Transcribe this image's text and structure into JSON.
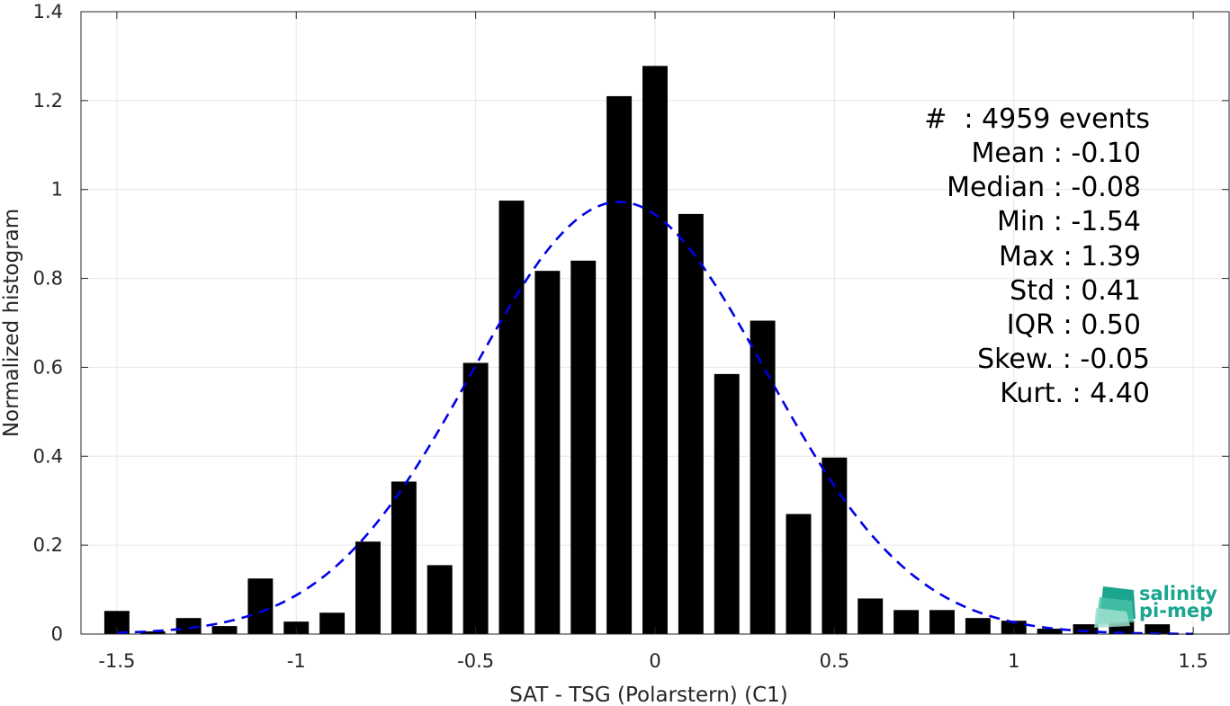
{
  "chart_data": {
    "type": "bar",
    "xlabel": "SAT - TSG (Polarstern) (C1)",
    "ylabel": "Normalized histogram",
    "xlim": [
      -1.6,
      1.6
    ],
    "ylim": [
      0,
      1.4
    ],
    "xticks": [
      -1.5,
      -1,
      -0.5,
      0,
      0.5,
      1,
      1.5
    ],
    "xtick_labels": [
      "-1.5",
      "-1",
      "-0.5",
      "0",
      "0.5",
      "1",
      "1.5"
    ],
    "yticks": [
      0,
      0.2,
      0.4,
      0.6,
      0.8,
      1,
      1.2,
      1.4
    ],
    "ytick_labels": [
      "0",
      "0.2",
      "0.4",
      "0.6",
      "0.8",
      "1",
      "1.2",
      "1.4"
    ],
    "grid": true,
    "bin_centers": [
      -1.5,
      -1.4,
      -1.3,
      -1.2,
      -1.1,
      -1.0,
      -0.9,
      -0.8,
      -0.7,
      -0.6,
      -0.5,
      -0.4,
      -0.3,
      -0.2,
      -0.1,
      0.0,
      0.1,
      0.2,
      0.3,
      0.4,
      0.5,
      0.6,
      0.7,
      0.8,
      0.9,
      1.0,
      1.1,
      1.2,
      1.3,
      1.4
    ],
    "values": [
      0.052,
      0.006,
      0.036,
      0.018,
      0.125,
      0.028,
      0.048,
      0.208,
      0.343,
      0.155,
      0.61,
      0.975,
      0.817,
      0.84,
      1.21,
      1.278,
      0.945,
      0.585,
      0.705,
      0.27,
      0.397,
      0.08,
      0.054,
      0.054,
      0.036,
      0.03,
      0.012,
      0.022,
      0.03,
      0.022
    ],
    "bar_color": "#000000",
    "fit": {
      "style": "dashed",
      "color": "#0000e6",
      "mean": -0.1,
      "std": 0.41
    },
    "stats": [
      "#  : 4959 events",
      "Mean : -0.10",
      "Median : -0.08",
      "Min : -1.54",
      "Max : 1.39",
      "Std : 0.41",
      "IQR : 0.50",
      "Skew. : -0.05",
      "Kurt. : 4.40"
    ],
    "logo": {
      "line1": "salinity",
      "line2": "pi-mep",
      "color": "#1aa58f"
    }
  }
}
